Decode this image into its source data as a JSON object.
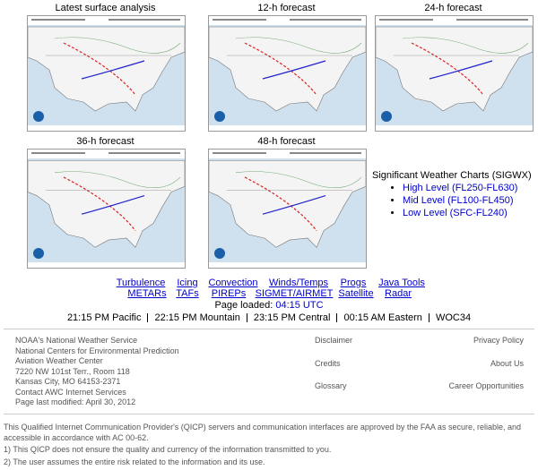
{
  "maps": [
    {
      "title": "Latest surface analysis"
    },
    {
      "title": "12-h forecast"
    },
    {
      "title": "24-h forecast"
    },
    {
      "title": "36-h forecast"
    },
    {
      "title": "48-h forecast"
    }
  ],
  "sigwx": {
    "title": "Significant Weather Charts (SIGWX)",
    "links": [
      "High Level (FL250-FL630)",
      "Mid Level (FL100-FL450)",
      "Low Level (SFC-FL240)"
    ]
  },
  "nav": {
    "row1": [
      "Turbulence",
      "Icing",
      "Convection",
      "Winds/Temps",
      "Progs",
      "Java Tools"
    ],
    "row2": [
      "METARs",
      "TAFs",
      "PIREPs",
      "SIGMET/AIRMET",
      "Satellite",
      "Radar"
    ]
  },
  "page_loaded": {
    "label": "Page loaded:",
    "time": "04:15 UTC"
  },
  "times": [
    "21:15 PM Pacific",
    "22:15 PM Mountain",
    "23:15 PM Central",
    "00:15 AM Eastern",
    "WOC34"
  ],
  "footer": {
    "address": [
      "NOAA's National Weather Service",
      "National Centers for Environmental Prediction",
      "Aviation Weather Center",
      "7220 NW 101st Terr., Room 118",
      "Kansas City, MO 64153-2371",
      "Contact AWC Internet Services",
      "Page last modified: April 30, 2012"
    ],
    "links_middle": [
      "Disclaimer",
      "Credits",
      "Glossary"
    ],
    "links_right": [
      "Privacy Policy",
      "About Us",
      "Career Opportunities"
    ]
  },
  "notice": {
    "text": "This Qualified Internet Communication Provider's (QICP) servers and communication interfaces are approved by the FAA as secure, reliable, and accessible in accordance with AC 00-62.",
    "items": [
      "1) This QICP does not ensure the quality and currency of the information transmitted to you.",
      "2) The user assumes the entire risk related to the information and its use."
    ]
  }
}
